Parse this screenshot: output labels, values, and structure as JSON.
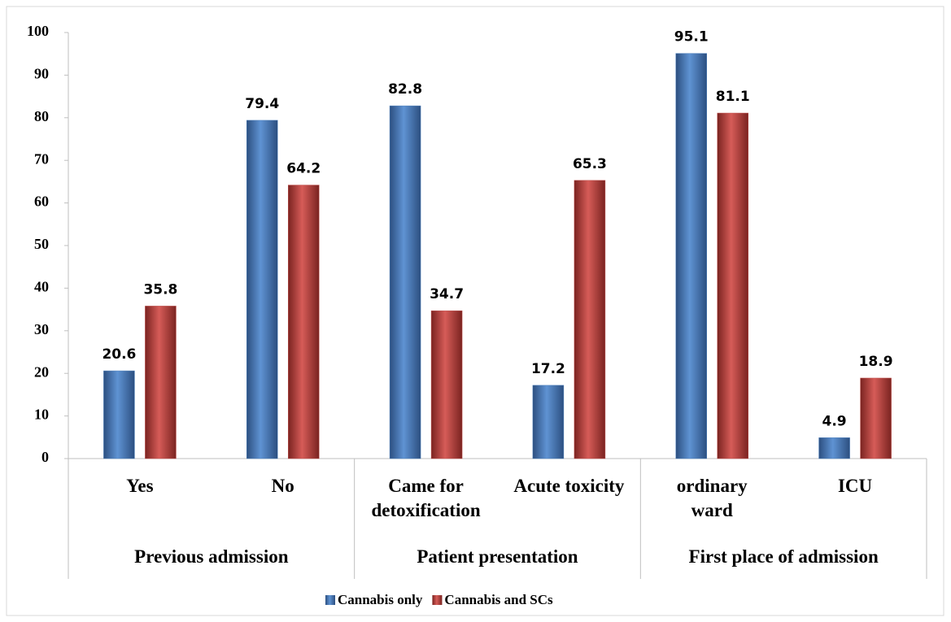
{
  "chart_data": {
    "type": "bar",
    "groups": [
      {
        "name": "Previous admission",
        "categories": [
          "Yes",
          "No"
        ]
      },
      {
        "name": "Patient presentation",
        "categories": [
          "Came for\ndetoxification",
          "Acute toxicity"
        ]
      },
      {
        "name": "First place of admission",
        "categories": [
          "ordinary\nward",
          "ICU"
        ]
      }
    ],
    "series": [
      {
        "name": "Cannabis only",
        "color": "#4f81bd",
        "values": [
          20.6,
          79.4,
          82.8,
          17.2,
          95.1,
          4.9
        ]
      },
      {
        "name": "Cannabis and SCs",
        "color": "#c0504d",
        "values": [
          35.8,
          64.2,
          34.7,
          65.3,
          81.1,
          18.9
        ]
      }
    ],
    "ylim": [
      0,
      100
    ],
    "yticks": [
      0,
      10,
      20,
      30,
      40,
      50,
      60,
      70,
      80,
      90,
      100
    ],
    "grid": false,
    "legend": "bottom"
  }
}
